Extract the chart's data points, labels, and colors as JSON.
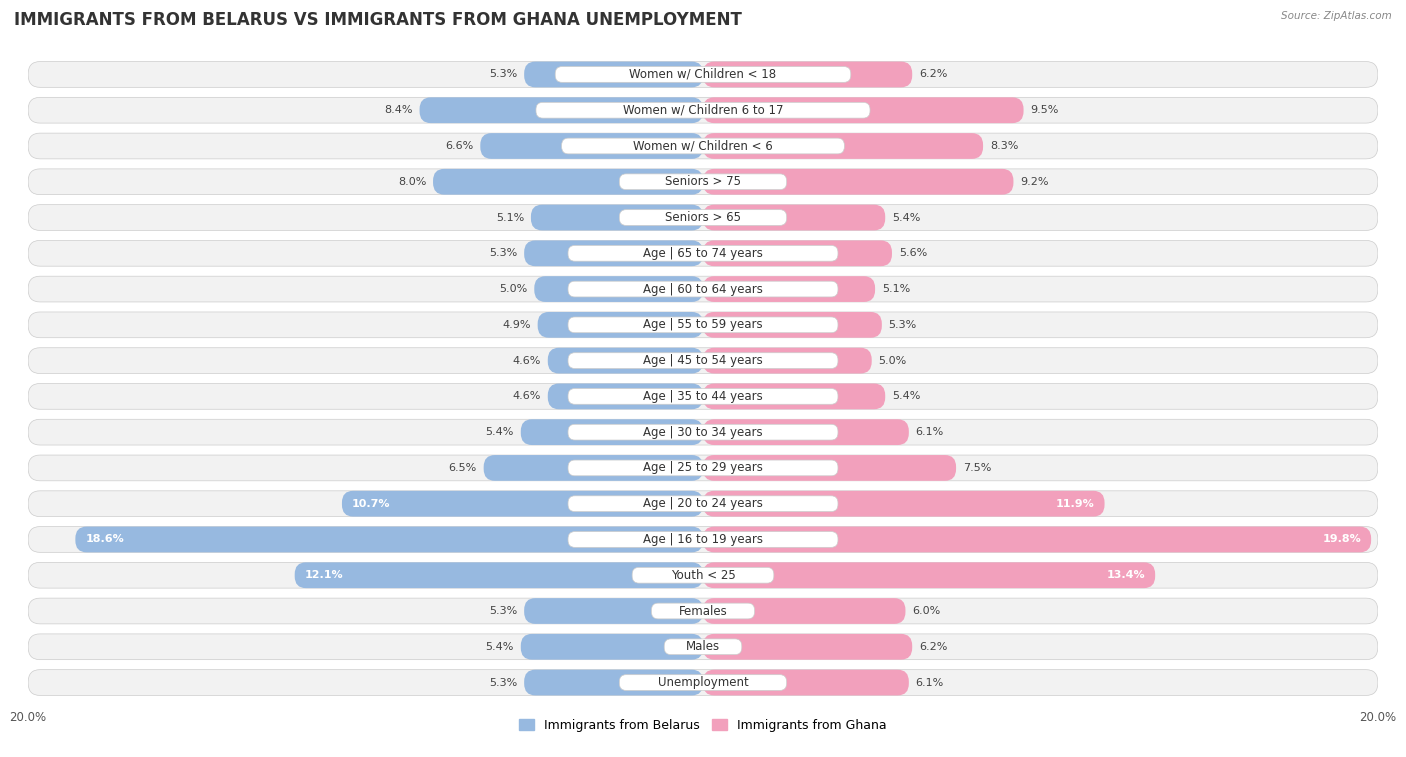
{
  "title": "IMMIGRANTS FROM BELARUS VS IMMIGRANTS FROM GHANA UNEMPLOYMENT",
  "source": "Source: ZipAtlas.com",
  "categories": [
    "Unemployment",
    "Males",
    "Females",
    "Youth < 25",
    "Age | 16 to 19 years",
    "Age | 20 to 24 years",
    "Age | 25 to 29 years",
    "Age | 30 to 34 years",
    "Age | 35 to 44 years",
    "Age | 45 to 54 years",
    "Age | 55 to 59 years",
    "Age | 60 to 64 years",
    "Age | 65 to 74 years",
    "Seniors > 65",
    "Seniors > 75",
    "Women w/ Children < 6",
    "Women w/ Children 6 to 17",
    "Women w/ Children < 18"
  ],
  "belarus_values": [
    5.3,
    5.4,
    5.3,
    12.1,
    18.6,
    10.7,
    6.5,
    5.4,
    4.6,
    4.6,
    4.9,
    5.0,
    5.3,
    5.1,
    8.0,
    6.6,
    8.4,
    5.3
  ],
  "ghana_values": [
    6.1,
    6.2,
    6.0,
    13.4,
    19.8,
    11.9,
    7.5,
    6.1,
    5.4,
    5.0,
    5.3,
    5.1,
    5.6,
    5.4,
    9.2,
    8.3,
    9.5,
    6.2
  ],
  "belarus_color": "#97b9e0",
  "ghana_color": "#f2a0bc",
  "max_val": 20.0,
  "bg_color": "#ffffff",
  "row_bg_color": "#ffffff",
  "row_sep_color": "#dddddd",
  "bar_bg_color": "#eeeeee",
  "title_fontsize": 12,
  "label_fontsize": 8.5,
  "value_fontsize": 8.0,
  "legend_fontsize": 9,
  "legend_label_belarus": "Immigrants from Belarus",
  "legend_label_ghana": "Immigrants from Ghana"
}
